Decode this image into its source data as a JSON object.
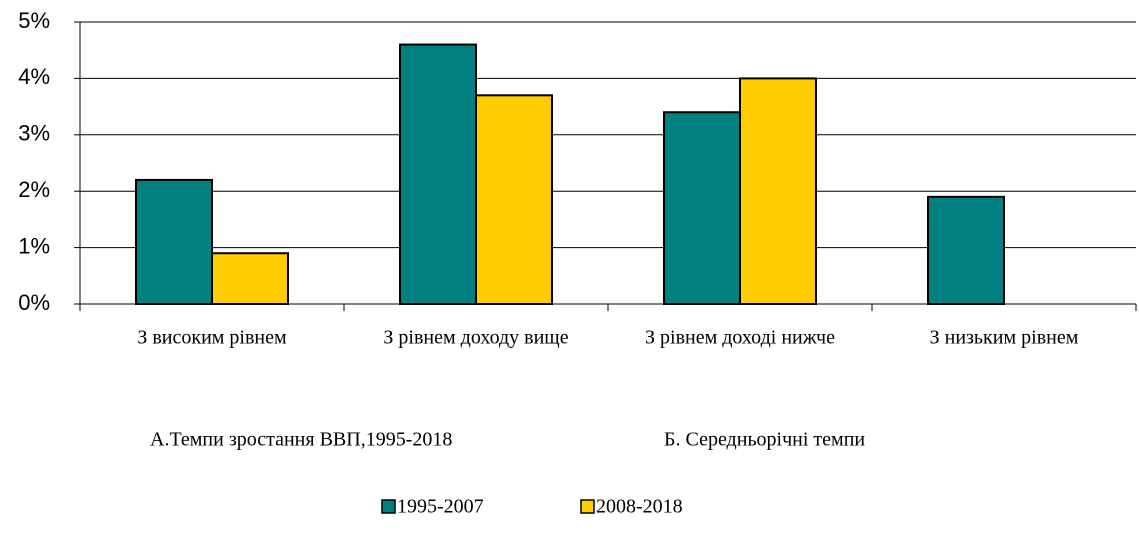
{
  "chart_data": {
    "type": "bar",
    "categories": [
      "З високим рівнем",
      "З рівнем  доходу вище",
      "З рівнем доході нижче",
      "З низьким рівнем"
    ],
    "series": [
      {
        "name": "1995-2007",
        "color": "#008080",
        "values": [
          2.2,
          4.6,
          3.4,
          1.9
        ]
      },
      {
        "name": "2008-2018",
        "color": "#ffcc00",
        "values": [
          0.9,
          3.7,
          4.0,
          null
        ]
      }
    ],
    "ylim": [
      0,
      5
    ],
    "yticks": [
      {
        "value": 0,
        "label": "0%"
      },
      {
        "value": 1,
        "label": "1%"
      },
      {
        "value": 2,
        "label": "2%"
      },
      {
        "value": 3,
        "label": "3%"
      },
      {
        "value": 4,
        "label": "4%"
      },
      {
        "value": 5,
        "label": "5%"
      }
    ],
    "grid": true,
    "legend": "bottom",
    "annotations": [
      "А.Темпи зростання ВВП,1995-2018",
      "Б. Середньорічні темпи"
    ]
  }
}
